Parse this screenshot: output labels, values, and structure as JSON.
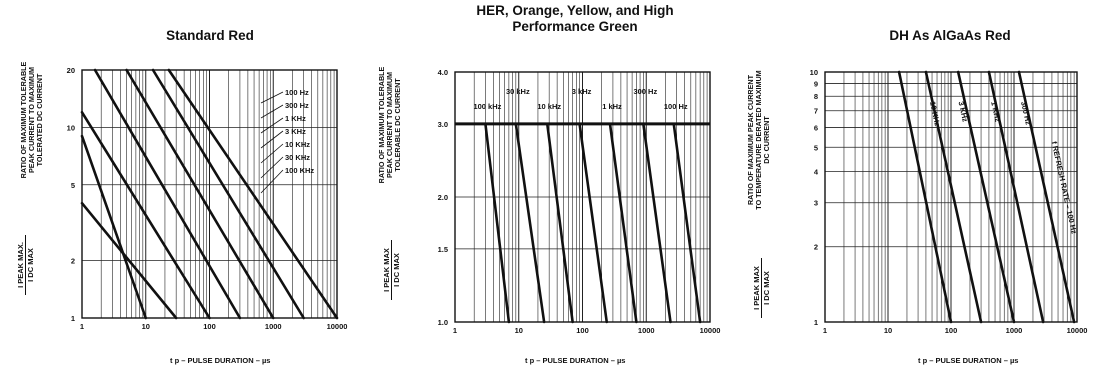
{
  "chart_data": [
    {
      "type": "line",
      "title": "Standard Red",
      "ylabel": "RATIO OF MAXIMUM TOLERABLE\nPEAK CURRENT TO MAXIMUM\nTOLERATED DC CURRENT",
      "yfrac_num": "I PEAK MAX.",
      "yfrac_den": "I DC MAX",
      "xlabel": "t p – PULSE DURATION – µs",
      "xscale": "log",
      "yscale": "log",
      "xlim": [
        1,
        10000
      ],
      "ylim": [
        1,
        20
      ],
      "xticks": [
        "1",
        "10",
        "100",
        "1000",
        "10000"
      ],
      "yticks": [
        {
          "v": 1,
          "label": "1"
        },
        {
          "v": 2,
          "label": "2"
        },
        {
          "v": 5,
          "label": "5"
        },
        {
          "v": 10,
          "label": "10"
        },
        {
          "v": 20,
          "label": "20"
        }
      ],
      "grid": true,
      "series": [
        {
          "name": "100 Hz",
          "points": [
            [
              23,
              20
            ],
            [
              10000,
              1
            ]
          ]
        },
        {
          "name": "300 Hz",
          "points": [
            [
              13,
              20
            ],
            [
              3000,
              1
            ]
          ]
        },
        {
          "name": "1 KHz",
          "points": [
            [
              5,
              20
            ],
            [
              1000,
              1
            ]
          ]
        },
        {
          "name": "3 KHz",
          "points": [
            [
              1.6,
              20
            ],
            [
              300,
              1
            ]
          ]
        },
        {
          "name": "10 KHz",
          "points": [
            [
              1,
              12
            ],
            [
              100,
              1
            ]
          ]
        },
        {
          "name": "30 KHz",
          "points": [
            [
              1,
              4
            ],
            [
              30,
              1
            ]
          ]
        },
        {
          "name": "100 KHz",
          "points": [
            [
              1,
              9
            ],
            [
              10,
              1
            ]
          ]
        }
      ],
      "annotation_side": "right"
    },
    {
      "type": "line",
      "title": "HER, Orange, Yellow, and High\nPerformance Green",
      "ylabel": "RATIO OF MAXIMUM TOLERABLE\nPEAK CURRENT TO MAXIMUM\nTOLERABLE DC CURRENT",
      "yfrac_num": "I PEAK MAX",
      "yfrac_den": "I DC MAX",
      "xlabel": "t p – PULSE DURATION – µs",
      "xscale": "log",
      "yscale": "log",
      "xlim": [
        1,
        10000
      ],
      "ylim": [
        1.0,
        4.0
      ],
      "xticks": [
        "1",
        "10",
        "100",
        "1000",
        "10000"
      ],
      "yticks": [
        {
          "v": 1.0,
          "label": "1.0"
        },
        {
          "v": 1.5,
          "label": "1.5"
        },
        {
          "v": 2.0,
          "label": "2.0"
        },
        {
          "v": 3.0,
          "label": "3.0"
        },
        {
          "v": 4.0,
          "label": "4.0"
        }
      ],
      "grid": true,
      "plateau": 3.0,
      "series": [
        {
          "name": "100 kHz",
          "points": [
            [
              3,
              3.0
            ],
            [
              7,
              1.0
            ]
          ]
        },
        {
          "name": "30 kHz",
          "points": [
            [
              9,
              3.0
            ],
            [
              25,
              1.0
            ]
          ]
        },
        {
          "name": "10 kHz",
          "points": [
            [
              28,
              3.0
            ],
            [
              70,
              1.0
            ]
          ]
        },
        {
          "name": "3 kHz",
          "points": [
            [
              90,
              3.0
            ],
            [
              240,
              1.0
            ]
          ]
        },
        {
          "name": "1 kHz",
          "points": [
            [
              270,
              3.0
            ],
            [
              700,
              1.0
            ]
          ]
        },
        {
          "name": "300 Hz",
          "points": [
            [
              900,
              3.0
            ],
            [
              2400,
              1.0
            ]
          ]
        },
        {
          "name": "100 Hz",
          "points": [
            [
              2700,
              3.0
            ],
            [
              7000,
              1.0
            ]
          ]
        }
      ],
      "annotation_side": "top"
    },
    {
      "type": "line",
      "title": "DH As AlGaAs Red",
      "ylabel": "RATIO OF MAXIMUM PEAK CURRENT\nTO TEMPERATURE DERATED MAXIMUM\nDC CURRENT",
      "yfrac_num": "I PEAK MAX",
      "yfrac_den": "I DC MAX",
      "xlabel": "t p – PULSE DURATION – µs",
      "xscale": "log",
      "yscale": "log",
      "xlim": [
        1,
        10000
      ],
      "ylim": [
        1,
        10
      ],
      "xticks": [
        "1",
        "10",
        "100",
        "1000",
        "10000"
      ],
      "yticks": [
        {
          "v": 1,
          "label": "1"
        },
        {
          "v": 2,
          "label": "2"
        },
        {
          "v": 3,
          "label": "3"
        },
        {
          "v": 4,
          "label": "4"
        },
        {
          "v": 5,
          "label": "5"
        },
        {
          "v": 6,
          "label": "6"
        },
        {
          "v": 7,
          "label": "7"
        },
        {
          "v": 8,
          "label": "8"
        },
        {
          "v": 9,
          "label": "9"
        },
        {
          "v": 10,
          "label": "10"
        }
      ],
      "grid": true,
      "series": [
        {
          "name": "10 KHz",
          "points": [
            [
              15,
              10
            ],
            [
              100,
              1
            ]
          ]
        },
        {
          "name": "3 KHz",
          "points": [
            [
              40,
              10
            ],
            [
              300,
              1
            ]
          ]
        },
        {
          "name": "1 KHz",
          "points": [
            [
              130,
              10
            ],
            [
              1000,
              1
            ]
          ]
        },
        {
          "name": "300 Hz",
          "points": [
            [
              400,
              10
            ],
            [
              2900,
              1
            ]
          ]
        },
        {
          "name": "f REFRESH RATE – 100 Hz",
          "points": [
            [
              1200,
              10
            ],
            [
              9000,
              1
            ]
          ]
        }
      ],
      "annotation_side": "along"
    }
  ]
}
